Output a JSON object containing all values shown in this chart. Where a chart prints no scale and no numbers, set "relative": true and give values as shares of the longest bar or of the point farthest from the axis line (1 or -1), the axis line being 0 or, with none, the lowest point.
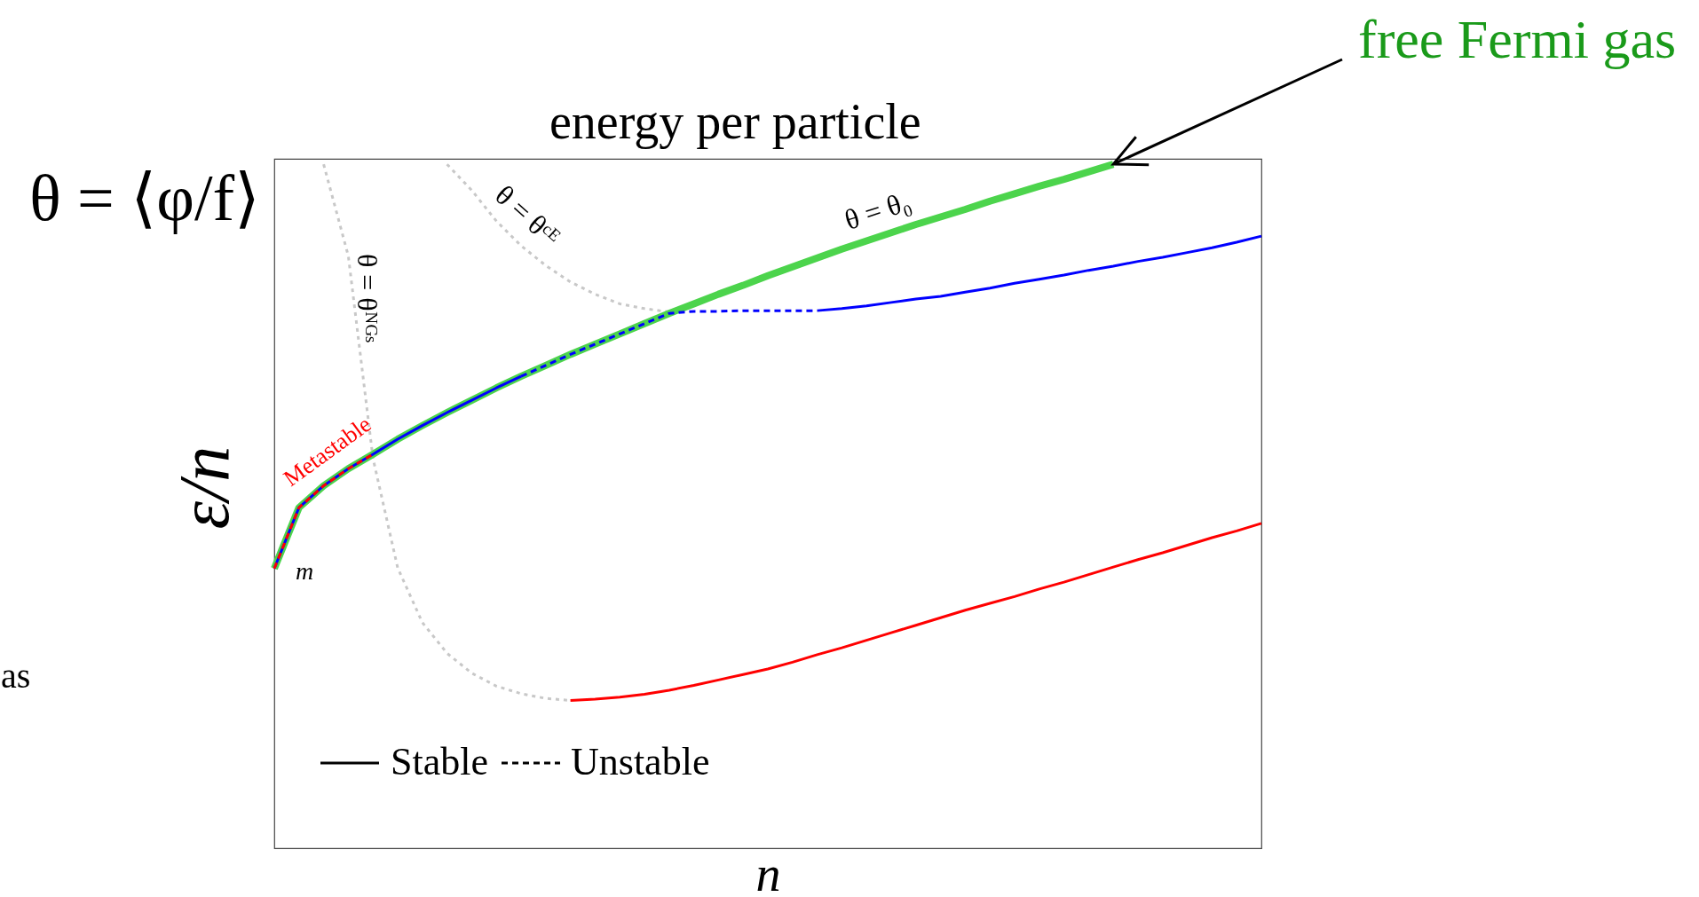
{
  "chart_data": {
    "type": "line",
    "relative": true,
    "title": "energy per particle",
    "xlabel": "n",
    "ylabel": "ε/n",
    "grid": false,
    "categories": [
      null,
      null,
      null,
      null,
      null,
      null,
      null,
      null,
      null,
      null,
      null,
      null,
      null,
      null,
      null,
      null,
      null,
      null,
      null,
      null,
      null,
      null,
      null,
      null,
      null,
      null,
      null,
      null,
      null,
      null,
      null,
      null,
      null,
      null,
      null,
      null,
      null,
      null,
      null,
      null,
      null
    ],
    "series": [
      {
        "color": "#c8c8c8",
        "line_style": "dotted",
        "values": [
          null,
          null,
          1.0,
          0.866,
          0.57,
          0.41,
          0.33,
          0.285,
          0.256,
          0.237,
          0.226,
          0.219,
          0.216,
          null,
          null,
          null,
          null,
          null,
          null,
          null,
          null,
          null,
          null,
          null,
          null,
          null,
          null,
          null,
          null,
          null,
          null,
          null,
          null,
          null,
          null,
          null,
          null,
          null,
          null,
          null,
          null
        ]
      },
      {
        "color": "#c8c8c8",
        "line_style": "dotted",
        "values": [
          null,
          null,
          null,
          null,
          null,
          null,
          null,
          1.0,
          0.962,
          0.917,
          0.881,
          0.852,
          0.828,
          0.81,
          0.796,
          0.789,
          0.784,
          null,
          null,
          null,
          null,
          null,
          null,
          null,
          null,
          null,
          null,
          null,
          null,
          null,
          null,
          null,
          null,
          null,
          null,
          null,
          null,
          null,
          null,
          null,
          null
        ]
      },
      {
        "color": "#4cd44c",
        "line_style": "solid",
        "values": [
          0.409,
          0.498,
          0.53,
          0.555,
          0.576,
          0.598,
          0.618,
          0.637,
          0.655,
          0.673,
          0.69,
          0.706,
          0.722,
          0.737,
          0.752,
          0.767,
          0.782,
          0.796,
          0.81,
          0.823,
          0.837,
          0.85,
          0.863,
          0.876,
          0.888,
          0.9,
          0.912,
          0.923,
          0.934,
          0.946,
          0.957,
          0.968,
          0.978,
          0.989,
          1.0,
          null,
          null,
          null,
          null,
          null,
          null
        ]
      },
      {
        "color": "#0000ff",
        "line_style": "solid",
        "values": [
          0.409,
          0.498,
          0.53,
          0.555,
          0.576,
          0.598,
          0.618,
          0.637,
          0.655,
          0.673,
          0.69,
          null,
          null,
          null,
          null,
          null,
          null,
          null,
          null,
          null,
          null,
          null,
          null,
          null,
          null,
          null,
          null,
          null,
          null,
          null,
          null,
          null,
          null,
          null,
          null,
          null,
          null,
          null,
          null,
          null,
          null
        ]
      },
      {
        "color": "#0000ff",
        "line_style": "dashed",
        "values": [
          null,
          null,
          null,
          null,
          null,
          null,
          null,
          null,
          null,
          null,
          0.69,
          0.706,
          0.722,
          0.737,
          0.752,
          0.767,
          0.782,
          0.785,
          0.785,
          0.786,
          0.786,
          0.786,
          0.786,
          null,
          null,
          null,
          null,
          null,
          null,
          null,
          null,
          null,
          null,
          null,
          null,
          null,
          null,
          null,
          null,
          null,
          null
        ]
      },
      {
        "color": "#0000ff",
        "line_style": "solid",
        "values": [
          null,
          null,
          null,
          null,
          null,
          null,
          null,
          null,
          null,
          null,
          null,
          null,
          null,
          null,
          null,
          null,
          null,
          null,
          null,
          null,
          null,
          null,
          0.786,
          0.789,
          0.793,
          0.798,
          0.803,
          0.807,
          0.813,
          0.819,
          0.826,
          0.832,
          0.838,
          0.845,
          0.851,
          0.858,
          0.864,
          0.871,
          0.878,
          0.886,
          0.895
        ]
      },
      {
        "color": "#ff0000",
        "line_style": "dashed",
        "values": [
          0.409,
          0.498,
          0.53,
          0.555,
          0.576,
          null,
          null,
          null,
          null,
          null,
          null,
          null,
          null,
          null,
          null,
          null,
          null,
          null,
          null,
          null,
          null,
          null,
          null,
          null,
          null,
          null,
          null,
          null,
          null,
          null,
          null,
          null,
          null,
          null,
          null,
          null,
          null,
          null,
          null,
          null,
          null
        ]
      },
      {
        "color": "#ff0000",
        "line_style": "solid",
        "values": [
          null,
          null,
          null,
          null,
          null,
          null,
          null,
          null,
          null,
          null,
          null,
          null,
          0.216,
          0.218,
          0.221,
          0.225,
          0.231,
          0.238,
          0.246,
          0.254,
          0.262,
          0.272,
          0.283,
          0.293,
          0.304,
          0.315,
          0.326,
          0.337,
          0.348,
          0.358,
          0.368,
          0.379,
          0.389,
          0.4,
          0.411,
          0.422,
          0.432,
          0.443,
          0.454,
          0.464,
          0.475
        ]
      }
    ],
    "annotations": [
      "Stable",
      "Unstable",
      "θ = ⟨φ/f⟩",
      "as",
      "free Fermi gas",
      "θ = θ₀",
      "θ = θᶜᴱ",
      "θ = θᴺᴳˢ",
      "Metastable",
      "m"
    ]
  }
}
